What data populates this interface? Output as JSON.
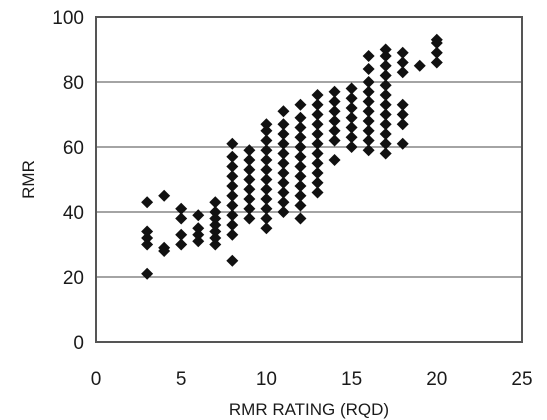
{
  "chart_data": {
    "type": "scatter",
    "title": "",
    "xlabel": "RMR RATING (RQD)",
    "ylabel": "RMR",
    "xlim": [
      0,
      25
    ],
    "ylim": [
      0,
      100
    ],
    "xticks": [
      0,
      5,
      10,
      15,
      20,
      25
    ],
    "yticks": [
      0,
      20,
      40,
      60,
      80,
      100
    ],
    "grid": "horizontal",
    "legend": "none",
    "marker": "diamond",
    "marker_color": "#111111",
    "series": [
      {
        "points": [
          [
            3,
            21
          ],
          [
            3,
            30
          ],
          [
            3,
            32
          ],
          [
            3,
            34
          ],
          [
            3,
            43
          ],
          [
            4,
            28
          ],
          [
            4,
            29
          ],
          [
            4,
            45
          ],
          [
            5,
            30
          ],
          [
            5,
            33
          ],
          [
            5,
            38
          ],
          [
            5,
            41
          ],
          [
            6,
            31
          ],
          [
            6,
            33
          ],
          [
            6,
            35
          ],
          [
            6,
            39
          ],
          [
            7,
            30
          ],
          [
            7,
            32
          ],
          [
            7,
            34
          ],
          [
            7,
            36
          ],
          [
            7,
            38
          ],
          [
            7,
            40
          ],
          [
            7,
            43
          ],
          [
            8,
            25
          ],
          [
            8,
            33
          ],
          [
            8,
            36
          ],
          [
            8,
            39
          ],
          [
            8,
            42
          ],
          [
            8,
            45
          ],
          [
            8,
            48
          ],
          [
            8,
            51
          ],
          [
            8,
            54
          ],
          [
            8,
            57
          ],
          [
            8,
            61
          ],
          [
            9,
            38
          ],
          [
            9,
            41
          ],
          [
            9,
            44
          ],
          [
            9,
            47
          ],
          [
            9,
            50
          ],
          [
            9,
            53
          ],
          [
            9,
            56
          ],
          [
            9,
            59
          ],
          [
            10,
            35
          ],
          [
            10,
            38
          ],
          [
            10,
            41
          ],
          [
            10,
            44
          ],
          [
            10,
            47
          ],
          [
            10,
            50
          ],
          [
            10,
            53
          ],
          [
            10,
            56
          ],
          [
            10,
            59
          ],
          [
            10,
            62
          ],
          [
            10,
            65
          ],
          [
            10,
            67
          ],
          [
            11,
            40
          ],
          [
            11,
            43
          ],
          [
            11,
            46
          ],
          [
            11,
            49
          ],
          [
            11,
            52
          ],
          [
            11,
            55
          ],
          [
            11,
            58
          ],
          [
            11,
            61
          ],
          [
            11,
            64
          ],
          [
            11,
            67
          ],
          [
            11,
            71
          ],
          [
            12,
            38
          ],
          [
            12,
            42
          ],
          [
            12,
            45
          ],
          [
            12,
            48
          ],
          [
            12,
            51
          ],
          [
            12,
            54
          ],
          [
            12,
            57
          ],
          [
            12,
            60
          ],
          [
            12,
            63
          ],
          [
            12,
            66
          ],
          [
            12,
            69
          ],
          [
            12,
            73
          ],
          [
            13,
            46
          ],
          [
            13,
            49
          ],
          [
            13,
            52
          ],
          [
            13,
            55
          ],
          [
            13,
            58
          ],
          [
            13,
            61
          ],
          [
            13,
            64
          ],
          [
            13,
            67
          ],
          [
            13,
            70
          ],
          [
            13,
            73
          ],
          [
            13,
            76
          ],
          [
            14,
            56
          ],
          [
            14,
            62
          ],
          [
            14,
            65
          ],
          [
            14,
            68
          ],
          [
            14,
            71
          ],
          [
            14,
            74
          ],
          [
            14,
            77
          ],
          [
            15,
            60
          ],
          [
            15,
            63
          ],
          [
            15,
            66
          ],
          [
            15,
            69
          ],
          [
            15,
            72
          ],
          [
            15,
            75
          ],
          [
            15,
            78
          ],
          [
            16,
            59
          ],
          [
            16,
            62
          ],
          [
            16,
            65
          ],
          [
            16,
            68
          ],
          [
            16,
            71
          ],
          [
            16,
            74
          ],
          [
            16,
            77
          ],
          [
            16,
            80
          ],
          [
            16,
            84
          ],
          [
            16,
            88
          ],
          [
            17,
            58
          ],
          [
            17,
            61
          ],
          [
            17,
            64
          ],
          [
            17,
            67
          ],
          [
            17,
            70
          ],
          [
            17,
            73
          ],
          [
            17,
            76
          ],
          [
            17,
            79
          ],
          [
            17,
            82
          ],
          [
            17,
            85
          ],
          [
            17,
            88
          ],
          [
            17,
            90
          ],
          [
            18,
            61
          ],
          [
            18,
            67
          ],
          [
            18,
            70
          ],
          [
            18,
            73
          ],
          [
            18,
            83
          ],
          [
            18,
            86
          ],
          [
            18,
            89
          ],
          [
            19,
            85
          ],
          [
            20,
            86
          ],
          [
            20,
            89
          ],
          [
            20,
            92
          ],
          [
            20,
            93
          ]
        ]
      }
    ]
  }
}
